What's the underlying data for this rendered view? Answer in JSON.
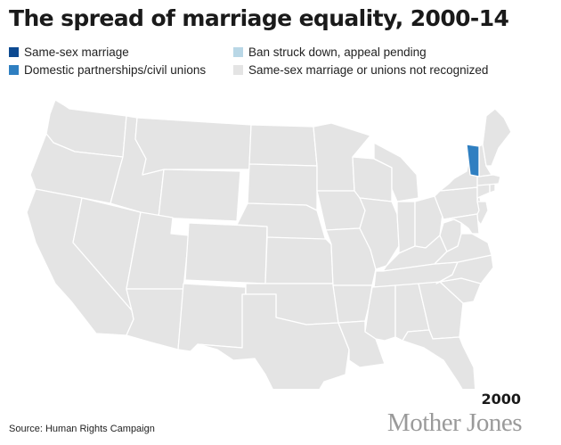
{
  "title": "The spread of marriage equality, 2000-14",
  "legend": [
    {
      "label": "Same-sex marriage",
      "color": "#0d4a91"
    },
    {
      "label": "Ban struck down, appeal pending",
      "color": "#b9d7e6"
    },
    {
      "label": "Domestic partnerships/civil unions",
      "color": "#2f7fc1"
    },
    {
      "label": "Same-sex marriage or unions not recognized",
      "color": "#e4e4e4"
    }
  ],
  "map": {
    "default_color": "#e4e4e4",
    "states": [
      {
        "name": "Vermont",
        "status": "Domestic partnerships/civil unions",
        "color": "#2f7fc1"
      }
    ]
  },
  "year": "2000",
  "source": "Source: Human Rights Campaign",
  "brand": "Mother Jones"
}
